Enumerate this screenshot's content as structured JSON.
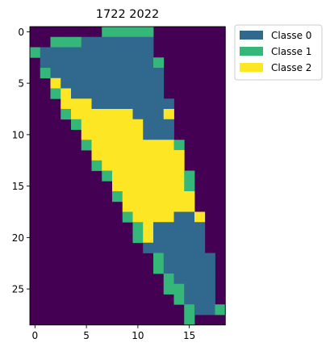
{
  "chart_data": {
    "type": "heatmap",
    "title": "1722 2022",
    "xlabel": "",
    "ylabel": "",
    "x_ticks": [
      0,
      5,
      10,
      15
    ],
    "y_ticks": [
      0,
      5,
      10,
      15,
      20,
      25
    ],
    "xlim": [
      -0.5,
      18.5
    ],
    "ylim": [
      28.5,
      -0.5
    ],
    "grid": false,
    "legend_position": "outside-top-right",
    "background_value_color": "#440154",
    "legend": [
      {
        "label": "Classe 0",
        "color": "#31688e"
      },
      {
        "label": "Classe 1",
        "color": "#35b779"
      },
      {
        "label": "Classe 2",
        "color": "#fde725"
      }
    ],
    "encoding": "Each row lists segments [start_column, end_column, class]; cells not covered are background.",
    "rows": [
      [
        [
          7,
          11,
          1
        ]
      ],
      [
        [
          2,
          4,
          1
        ],
        [
          5,
          11,
          0
        ]
      ],
      [
        [
          0,
          0,
          1
        ],
        [
          1,
          11,
          0
        ]
      ],
      [
        [
          1,
          11,
          0
        ],
        [
          12,
          12,
          1
        ]
      ],
      [
        [
          1,
          1,
          1
        ],
        [
          2,
          12,
          0
        ]
      ],
      [
        [
          2,
          2,
          2
        ],
        [
          3,
          12,
          0
        ]
      ],
      [
        [
          2,
          2,
          1
        ],
        [
          3,
          3,
          2
        ],
        [
          4,
          12,
          0
        ]
      ],
      [
        [
          3,
          5,
          2
        ],
        [
          6,
          12,
          0
        ],
        [
          13,
          13,
          0
        ]
      ],
      [
        [
          3,
          3,
          1
        ],
        [
          4,
          9,
          2
        ],
        [
          10,
          12,
          0
        ],
        [
          13,
          13,
          2
        ]
      ],
      [
        [
          4,
          4,
          1
        ],
        [
          5,
          10,
          2
        ],
        [
          11,
          13,
          0
        ]
      ],
      [
        [
          5,
          10,
          2
        ],
        [
          11,
          13,
          0
        ]
      ],
      [
        [
          5,
          5,
          1
        ],
        [
          6,
          13,
          2
        ],
        [
          14,
          14,
          1
        ]
      ],
      [
        [
          6,
          14,
          2
        ]
      ],
      [
        [
          6,
          6,
          1
        ],
        [
          7,
          14,
          2
        ]
      ],
      [
        [
          7,
          7,
          1
        ],
        [
          8,
          14,
          2
        ],
        [
          15,
          15,
          1
        ]
      ],
      [
        [
          8,
          14,
          2
        ],
        [
          15,
          15,
          1
        ]
      ],
      [
        [
          8,
          8,
          1
        ],
        [
          9,
          15,
          2
        ]
      ],
      [
        [
          9,
          15,
          2
        ]
      ],
      [
        [
          9,
          9,
          1
        ],
        [
          10,
          13,
          2
        ],
        [
          14,
          15,
          0
        ],
        [
          16,
          16,
          2
        ]
      ],
      [
        [
          10,
          10,
          1
        ],
        [
          11,
          11,
          2
        ],
        [
          12,
          15,
          0
        ],
        [
          16,
          16,
          0
        ]
      ],
      [
        [
          10,
          10,
          1
        ],
        [
          11,
          11,
          2
        ],
        [
          12,
          16,
          0
        ]
      ],
      [
        [
          11,
          16,
          0
        ]
      ],
      [
        [
          12,
          12,
          1
        ],
        [
          13,
          17,
          0
        ]
      ],
      [
        [
          12,
          12,
          1
        ],
        [
          13,
          17,
          0
        ]
      ],
      [
        [
          13,
          13,
          1
        ],
        [
          14,
          17,
          0
        ]
      ],
      [
        [
          13,
          14,
          1
        ],
        [
          15,
          17,
          0
        ]
      ],
      [
        [
          14,
          14,
          1
        ],
        [
          15,
          17,
          0
        ]
      ],
      [
        [
          15,
          15,
          1
        ],
        [
          16,
          17,
          0
        ],
        [
          18,
          18,
          1
        ]
      ],
      [
        [
          15,
          15,
          1
        ]
      ]
    ]
  }
}
